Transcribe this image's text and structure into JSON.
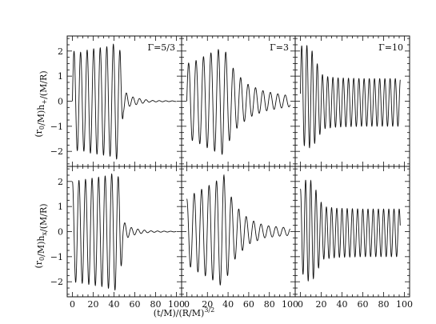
{
  "chart_data": {
    "type": "line",
    "layout": "2x3 panel grid, shared axes",
    "xlabel": "(t/M)/(R/M)^{3/2}",
    "xlim": [
      -5,
      105
    ],
    "ylim": [
      -2.6,
      2.6
    ],
    "xticks": [
      0,
      20,
      40,
      60,
      80,
      100
    ],
    "yticks": [
      -2,
      -1,
      0,
      1,
      2
    ],
    "rows": [
      {
        "ylabel": "(r_0/M)h_+/(M/R)"
      },
      {
        "ylabel": "(r_0/M)h_x/(M/R)"
      }
    ],
    "columns": [
      {
        "label": "Γ=5/3"
      },
      {
        "label": "Γ=3"
      },
      {
        "label": "Γ=10"
      }
    ],
    "panels": [
      {
        "row": 0,
        "col": 0,
        "series": {
          "name": "h_plus, Γ=5/3",
          "period": 6.3,
          "phase": 0,
          "envelope": [
            [
              0,
              2.0
            ],
            [
              8,
              1.95
            ],
            [
              15,
              2.05
            ],
            [
              22,
              2.1
            ],
            [
              30,
              2.15
            ],
            [
              37,
              2.2
            ],
            [
              42,
              2.35
            ],
            [
              46,
              2.0
            ],
            [
              49,
              0.45
            ],
            [
              55,
              0.2
            ],
            [
              65,
              0.1
            ],
            [
              75,
              0.03
            ],
            [
              100,
              0.01
            ]
          ],
          "offset": [
            [
              0,
              0
            ],
            [
              100,
              0
            ]
          ],
          "end": 100
        }
      },
      {
        "row": 0,
        "col": 1,
        "series": {
          "name": "h_plus, Γ=3",
          "period": 7.2,
          "phase": 0,
          "envelope": [
            [
              0,
              1.5
            ],
            [
              8,
              1.6
            ],
            [
              15,
              1.75
            ],
            [
              22,
              1.9
            ],
            [
              30,
              2.05
            ],
            [
              36,
              2.15
            ],
            [
              41,
              1.6
            ],
            [
              48,
              1.1
            ],
            [
              60,
              0.65
            ],
            [
              75,
              0.4
            ],
            [
              90,
              0.28
            ],
            [
              100,
              0.22
            ]
          ],
          "offset": [
            [
              0,
              0
            ],
            [
              100,
              0
            ]
          ],
          "end": 100
        }
      },
      {
        "row": 0,
        "col": 2,
        "series": {
          "name": "h_plus, Γ=10",
          "period": 5.0,
          "phase": 0,
          "envelope": [
            [
              0,
              1.9
            ],
            [
              6,
              2.05
            ],
            [
              12,
              1.9
            ],
            [
              16,
              1.5
            ],
            [
              22,
              1.05
            ],
            [
              35,
              0.98
            ],
            [
              60,
              0.95
            ],
            [
              96,
              0.95
            ]
          ],
          "offset": [
            [
              0,
              0.3
            ],
            [
              10,
              0.1
            ],
            [
              20,
              -0.05
            ],
            [
              40,
              -0.05
            ],
            [
              96,
              -0.05
            ]
          ],
          "end": 96
        }
      },
      {
        "row": 1,
        "col": 0,
        "series": {
          "name": "h_cross, Γ=5/3",
          "period": 6.3,
          "phase": 1.5708,
          "envelope": [
            [
              0,
              2.0
            ],
            [
              8,
              2.05
            ],
            [
              15,
              2.1
            ],
            [
              22,
              2.15
            ],
            [
              30,
              2.2
            ],
            [
              38,
              2.3
            ],
            [
              43,
              2.35
            ],
            [
              46,
              1.9
            ],
            [
              49,
              0.4
            ],
            [
              55,
              0.18
            ],
            [
              65,
              0.08
            ],
            [
              75,
              0.03
            ],
            [
              100,
              0.01
            ]
          ],
          "offset": [
            [
              0,
              0
            ],
            [
              100,
              0
            ]
          ],
          "end": 100
        }
      },
      {
        "row": 1,
        "col": 1,
        "series": {
          "name": "h_cross, Γ=3",
          "period": 7.2,
          "phase": 1.5708,
          "envelope": [
            [
              0,
              1.3
            ],
            [
              8,
              1.55
            ],
            [
              15,
              1.7
            ],
            [
              22,
              1.85
            ],
            [
              30,
              2.05
            ],
            [
              36,
              2.25
            ],
            [
              41,
              1.55
            ],
            [
              48,
              1.0
            ],
            [
              60,
              0.5
            ],
            [
              75,
              0.25
            ],
            [
              90,
              0.18
            ],
            [
              100,
              0.15
            ]
          ],
          "offset": [
            [
              0,
              0
            ],
            [
              100,
              0
            ]
          ],
          "end": 100
        }
      },
      {
        "row": 1,
        "col": 2,
        "series": {
          "name": "h_cross, Γ=10",
          "period": 5.0,
          "phase": 1.5708,
          "envelope": [
            [
              0,
              1.6
            ],
            [
              6,
              2.05
            ],
            [
              12,
              1.95
            ],
            [
              16,
              1.55
            ],
            [
              22,
              1.05
            ],
            [
              35,
              0.98
            ],
            [
              60,
              0.95
            ],
            [
              96,
              0.95
            ]
          ],
          "offset": [
            [
              0,
              0.1
            ],
            [
              10,
              0.05
            ],
            [
              20,
              -0.05
            ],
            [
              40,
              -0.05
            ],
            [
              96,
              -0.05
            ]
          ],
          "end": 96
        }
      }
    ]
  }
}
